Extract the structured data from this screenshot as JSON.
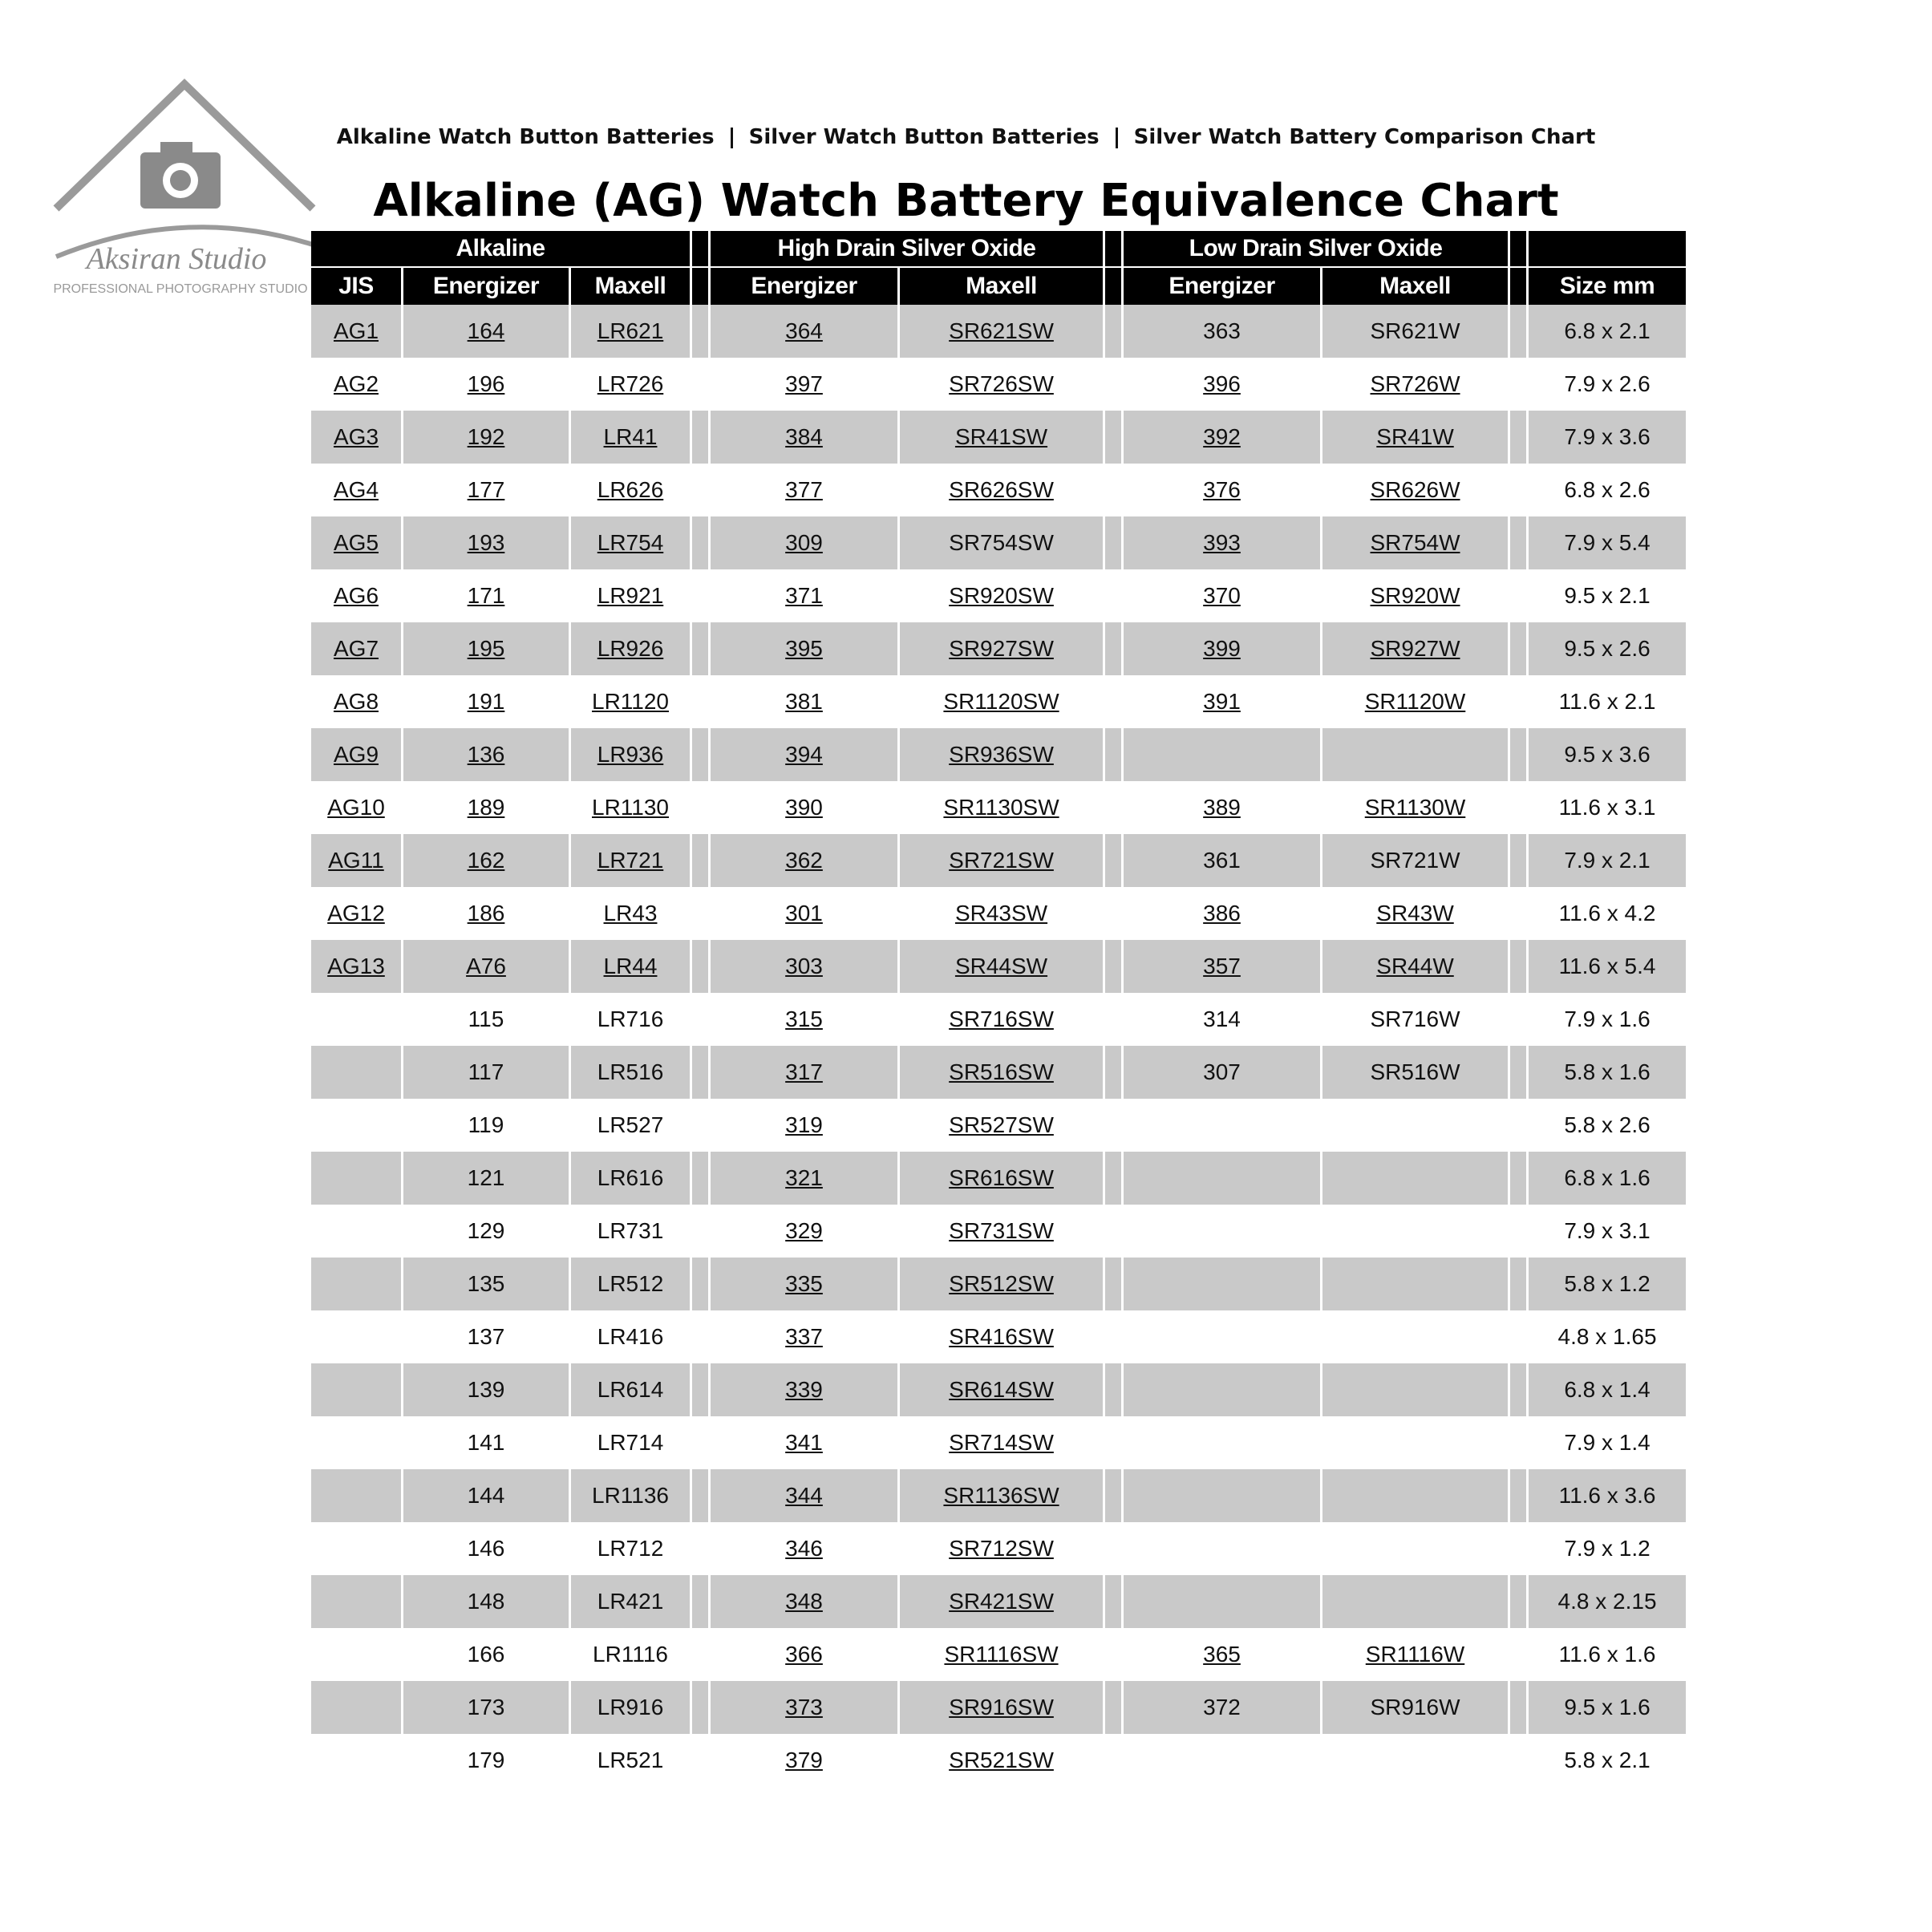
{
  "watermark": {
    "name": "Aksiran Studio",
    "tagline": "PROFESSIONAL PHOTOGRAPHY STUDIO"
  },
  "nav": [
    "Alkaline Watch Button Batteries",
    "Silver Watch Button Batteries",
    "Silver Watch Battery Comparison Chart"
  ],
  "title": "Alkaline (AG) Watch Battery Equivalence Chart",
  "table": {
    "groups": [
      "Alkaline",
      "High Drain Silver Oxide",
      "Low Drain Silver Oxide"
    ],
    "columns": [
      "JIS",
      "Energizer",
      "Maxell",
      "Energizer",
      "Maxell",
      "Energizer",
      "Maxell",
      "Size mm"
    ],
    "rows": [
      {
        "cells": [
          "AG1",
          "164",
          "LR621",
          "364",
          "SR621SW",
          "363",
          "SR621W",
          "6.8 x 2.1"
        ],
        "links": [
          0,
          1,
          2,
          3,
          4
        ]
      },
      {
        "cells": [
          "AG2",
          "196",
          "LR726",
          "397",
          "SR726SW",
          "396",
          "SR726W",
          "7.9 x 2.6"
        ],
        "links": [
          0,
          1,
          2,
          3,
          4,
          5,
          6
        ]
      },
      {
        "cells": [
          "AG3",
          "192",
          "LR41",
          "384",
          "SR41SW",
          "392",
          "SR41W",
          "7.9 x 3.6"
        ],
        "links": [
          0,
          1,
          2,
          3,
          4,
          5,
          6
        ]
      },
      {
        "cells": [
          "AG4",
          "177",
          "LR626",
          "377",
          "SR626SW",
          "376",
          "SR626W",
          "6.8 x 2.6"
        ],
        "links": [
          0,
          1,
          2,
          3,
          4,
          5,
          6
        ]
      },
      {
        "cells": [
          "AG5",
          "193",
          "LR754",
          "309",
          "SR754SW",
          "393",
          "SR754W",
          "7.9 x 5.4"
        ],
        "links": [
          0,
          1,
          2,
          3,
          5,
          6
        ]
      },
      {
        "cells": [
          "AG6",
          "171",
          "LR921",
          "371",
          "SR920SW",
          "370",
          "SR920W",
          "9.5 x 2.1"
        ],
        "links": [
          0,
          1,
          2,
          3,
          4,
          5,
          6
        ]
      },
      {
        "cells": [
          "AG7",
          "195",
          "LR926",
          "395",
          "SR927SW",
          "399",
          "SR927W",
          "9.5 x 2.6"
        ],
        "links": [
          0,
          1,
          2,
          3,
          4,
          5,
          6
        ]
      },
      {
        "cells": [
          "AG8",
          "191",
          "LR1120",
          "381",
          "SR1120SW",
          "391",
          "SR1120W",
          "11.6 x 2.1"
        ],
        "links": [
          0,
          1,
          2,
          3,
          4,
          5,
          6
        ]
      },
      {
        "cells": [
          "AG9",
          "136",
          "LR936",
          "394",
          "SR936SW",
          null,
          null,
          "9.5 x 3.6"
        ],
        "links": [
          0,
          1,
          2,
          3,
          4
        ]
      },
      {
        "cells": [
          "AG10",
          "189",
          "LR1130",
          "390",
          "SR1130SW",
          "389",
          "SR1130W",
          "11.6 x 3.1"
        ],
        "links": [
          0,
          1,
          2,
          3,
          4,
          5,
          6
        ]
      },
      {
        "cells": [
          "AG11",
          "162",
          "LR721",
          "362",
          "SR721SW",
          "361",
          "SR721W",
          "7.9 x 2.1"
        ],
        "links": [
          0,
          1,
          2,
          3,
          4
        ]
      },
      {
        "cells": [
          "AG12",
          "186",
          "LR43",
          "301",
          "SR43SW",
          "386",
          "SR43W",
          "11.6 x 4.2"
        ],
        "links": [
          0,
          1,
          2,
          3,
          4,
          5,
          6
        ]
      },
      {
        "cells": [
          "AG13",
          "A76",
          "LR44",
          "303",
          "SR44SW",
          "357",
          "SR44W",
          "11.6 x 5.4"
        ],
        "links": [
          0,
          1,
          2,
          3,
          4,
          5,
          6
        ]
      },
      {
        "cells": [
          null,
          "115",
          "LR716",
          "315",
          "SR716SW",
          "314",
          "SR716W",
          "7.9 x 1.6"
        ],
        "links": [
          3,
          4
        ]
      },
      {
        "cells": [
          null,
          "117",
          "LR516",
          "317",
          "SR516SW",
          "307",
          "SR516W",
          "5.8 x 1.6"
        ],
        "links": [
          3,
          4
        ]
      },
      {
        "cells": [
          null,
          "119",
          "LR527",
          "319",
          "SR527SW",
          null,
          null,
          "5.8 x 2.6"
        ],
        "links": [
          3,
          4
        ]
      },
      {
        "cells": [
          null,
          "121",
          "LR616",
          "321",
          "SR616SW",
          null,
          null,
          "6.8 x 1.6"
        ],
        "links": [
          3,
          4
        ]
      },
      {
        "cells": [
          null,
          "129",
          "LR731",
          "329",
          "SR731SW",
          null,
          null,
          "7.9 x 3.1"
        ],
        "links": [
          3,
          4
        ]
      },
      {
        "cells": [
          null,
          "135",
          "LR512",
          "335",
          "SR512SW",
          null,
          null,
          "5.8 x 1.2"
        ],
        "links": [
          3,
          4
        ]
      },
      {
        "cells": [
          null,
          "137",
          "LR416",
          "337",
          "SR416SW",
          null,
          null,
          "4.8 x 1.65"
        ],
        "links": [
          3,
          4
        ]
      },
      {
        "cells": [
          null,
          "139",
          "LR614",
          "339",
          "SR614SW",
          null,
          null,
          "6.8 x 1.4"
        ],
        "links": [
          3,
          4
        ]
      },
      {
        "cells": [
          null,
          "141",
          "LR714",
          "341",
          "SR714SW",
          null,
          null,
          "7.9 x 1.4"
        ],
        "links": [
          3,
          4
        ]
      },
      {
        "cells": [
          null,
          "144",
          "LR1136",
          "344",
          "SR1136SW",
          null,
          null,
          "11.6 x 3.6"
        ],
        "links": [
          3,
          4
        ]
      },
      {
        "cells": [
          null,
          "146",
          "LR712",
          "346",
          "SR712SW",
          null,
          null,
          "7.9 x 1.2"
        ],
        "links": [
          3,
          4
        ]
      },
      {
        "cells": [
          null,
          "148",
          "LR421",
          "348",
          "SR421SW",
          null,
          null,
          "4.8 x 2.15"
        ],
        "links": [
          3,
          4
        ]
      },
      {
        "cells": [
          null,
          "166",
          "LR1116",
          "366",
          "SR1116SW",
          "365",
          "SR1116W",
          "11.6 x 1.6"
        ],
        "links": [
          3,
          4,
          5,
          6
        ]
      },
      {
        "cells": [
          null,
          "173",
          "LR916",
          "373",
          "SR916SW",
          "372",
          "SR916W",
          "9.5 x 1.6"
        ],
        "links": [
          3,
          4
        ]
      },
      {
        "cells": [
          null,
          "179",
          "LR521",
          "379",
          "SR521SW",
          null,
          null,
          "5.8 x 2.1"
        ],
        "links": [
          3,
          4
        ]
      }
    ]
  }
}
